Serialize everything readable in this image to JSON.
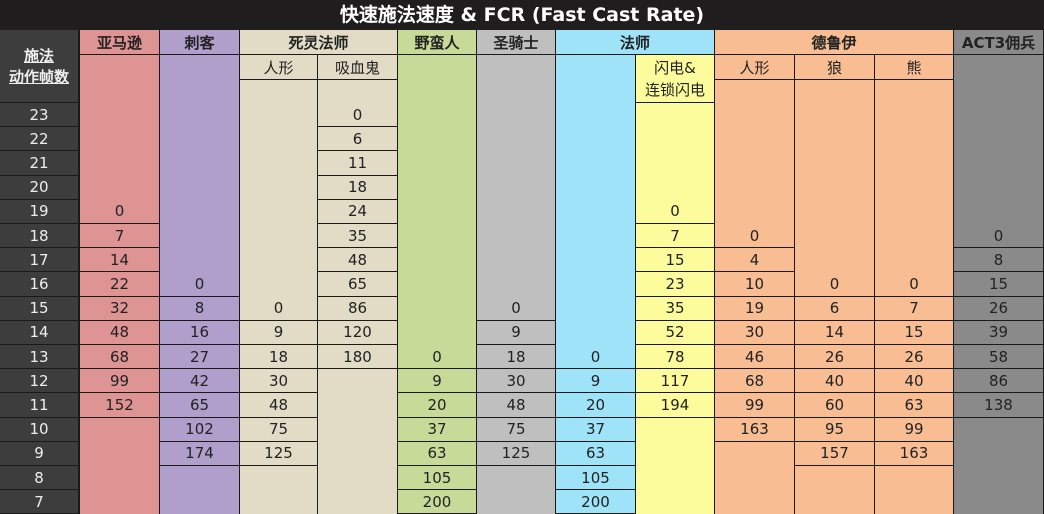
{
  "title": "快速施法速度 & FCR (Fast Cast Rate)",
  "row_header": {
    "line1": "施法",
    "line2": "动作帧数"
  },
  "frames": [
    23,
    22,
    21,
    20,
    19,
    18,
    17,
    16,
    15,
    14,
    13,
    12,
    11,
    10,
    9,
    8,
    7
  ],
  "classes": [
    {
      "name": "亚马逊",
      "color": "#df9494"
    },
    {
      "name": "刺客",
      "color": "#b19fcb"
    },
    {
      "name": "死灵法师",
      "color": "#e2dcc6",
      "sub": [
        "人形",
        "吸血鬼"
      ]
    },
    {
      "name": "野蛮人",
      "color": "#c7da98"
    },
    {
      "name": "圣骑士",
      "color": "#bfbfbf"
    },
    {
      "name": "法师",
      "color": "#9ee3f8",
      "sub": [
        "",
        "闪电&连锁闪电"
      ],
      "sub2_color": "#fdfc9c"
    },
    {
      "name": "德鲁伊",
      "color": "#f8bd93",
      "sub": [
        "人形",
        "狼",
        "熊"
      ]
    },
    {
      "name": "ACT3佣兵",
      "color": "#8a8a8a"
    }
  ],
  "columns": [
    {
      "key": "amazon",
      "values": {
        "19": "0",
        "18": "7",
        "17": "14",
        "16": "22",
        "15": "32",
        "14": "48",
        "13": "68",
        "12": "99",
        "11": "152"
      }
    },
    {
      "key": "assassin",
      "values": {
        "16": "0",
        "15": "8",
        "14": "16",
        "13": "27",
        "12": "42",
        "11": "65",
        "10": "102",
        "9": "174"
      }
    },
    {
      "key": "necro_human",
      "values": {
        "15": "0",
        "14": "9",
        "13": "18",
        "12": "30",
        "11": "48",
        "10": "75",
        "9": "125"
      }
    },
    {
      "key": "necro_vampire",
      "values": {
        "23": "0",
        "22": "6",
        "21": "11",
        "20": "18",
        "19": "24",
        "18": "35",
        "17": "48",
        "16": "65",
        "15": "86",
        "14": "120",
        "13": "180"
      }
    },
    {
      "key": "barbarian",
      "values": {
        "13": "0",
        "12": "9",
        "11": "20",
        "10": "37",
        "9": "63",
        "8": "105",
        "7": "200"
      }
    },
    {
      "key": "paladin",
      "values": {
        "15": "0",
        "14": "9",
        "13": "18",
        "12": "30",
        "11": "48",
        "10": "75",
        "9": "125"
      }
    },
    {
      "key": "sorc",
      "values": {
        "13": "0",
        "12": "9",
        "11": "20",
        "10": "37",
        "9": "63",
        "8": "105",
        "7": "200"
      }
    },
    {
      "key": "sorc_lightning",
      "values": {
        "19": "0",
        "18": "7",
        "17": "15",
        "16": "23",
        "15": "35",
        "14": "52",
        "13": "78",
        "12": "117",
        "11": "194"
      }
    },
    {
      "key": "druid_human",
      "values": {
        "18": "0",
        "17": "4",
        "16": "10",
        "15": "19",
        "14": "30",
        "13": "46",
        "12": "68",
        "11": "99",
        "10": "163"
      }
    },
    {
      "key": "druid_wolf",
      "values": {
        "16": "0",
        "15": "6",
        "14": "14",
        "13": "26",
        "12": "40",
        "11": "60",
        "10": "95",
        "9": "157"
      }
    },
    {
      "key": "druid_bear",
      "values": {
        "16": "0",
        "15": "7",
        "14": "15",
        "13": "26",
        "12": "40",
        "11": "63",
        "10": "99",
        "9": "163"
      }
    },
    {
      "key": "act3_merc",
      "values": {
        "18": "0",
        "17": "8",
        "16": "15",
        "15": "26",
        "14": "39",
        "13": "58",
        "12": "86",
        "11": "138"
      }
    }
  ]
}
